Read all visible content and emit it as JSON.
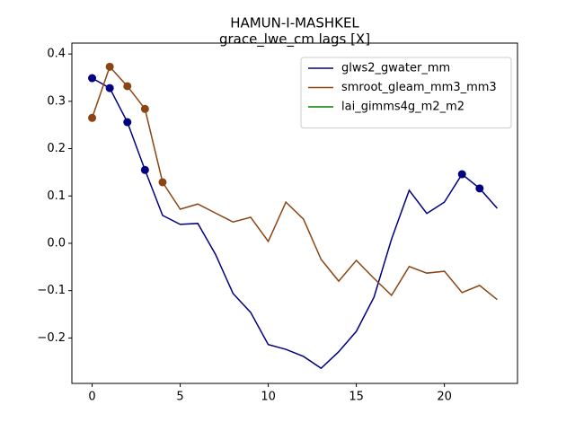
{
  "chart_data": {
    "type": "line",
    "title": "HAMUN-I-MASHKEL",
    "subtitle": "grace_lwe_cm lags [X]",
    "x": [
      0,
      1,
      2,
      3,
      4,
      5,
      6,
      7,
      8,
      9,
      10,
      11,
      12,
      13,
      14,
      15,
      16,
      17,
      18,
      19,
      20,
      21,
      22,
      23
    ],
    "series": [
      {
        "name": "glws2_gwater_mm",
        "color": "#000080",
        "values": [
          0.349,
          0.328,
          0.256,
          0.155,
          0.059,
          0.04,
          0.042,
          -0.023,
          -0.106,
          -0.146,
          -0.214,
          -0.224,
          -0.239,
          -0.264,
          -0.229,
          -0.186,
          -0.114,
          0.009,
          0.112,
          0.063,
          0.087,
          0.146,
          0.116,
          0.074
        ],
        "markers": [
          0,
          1,
          2,
          3,
          21,
          22
        ]
      },
      {
        "name": "smroot_gleam_mm3_mm3",
        "color": "#8b4513",
        "values": [
          0.265,
          0.373,
          0.332,
          0.284,
          0.129,
          0.072,
          0.083,
          0.064,
          0.045,
          0.055,
          0.004,
          0.087,
          0.051,
          -0.034,
          -0.08,
          -0.036,
          -0.074,
          -0.11,
          -0.049,
          -0.063,
          -0.059,
          -0.104,
          -0.089,
          -0.119
        ],
        "markers": [
          0,
          1,
          2,
          3,
          4
        ]
      },
      {
        "name": "lai_gimms4g_m2_m2",
        "color": "#008000",
        "values": [
          null,
          null,
          null,
          null,
          null,
          null,
          null,
          null,
          null,
          null,
          null,
          null,
          null,
          null,
          null,
          null,
          null,
          null,
          null,
          null,
          null,
          null,
          null,
          null
        ],
        "markers": []
      }
    ],
    "xlim": [
      -1.15,
      24.15
    ],
    "xticks": [
      0,
      5,
      10,
      15,
      20
    ],
    "ylim": [
      -0.296,
      0.423
    ],
    "yticks": [
      {
        "value": -0.2,
        "label": "−0.2"
      },
      {
        "value": -0.1,
        "label": "−0.1"
      },
      {
        "value": 0,
        "label": "0.0"
      },
      0.1,
      0.2,
      0.3,
      0.4
    ],
    "legend": "upper right",
    "grid": false
  }
}
